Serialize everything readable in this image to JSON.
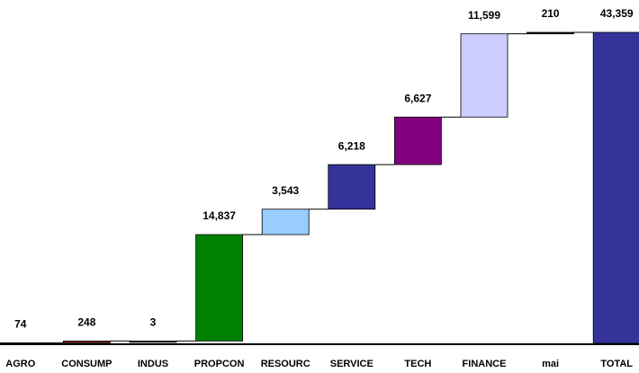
{
  "chart_data": {
    "type": "waterfall",
    "categories": [
      "AGRO",
      "CONSUMP",
      "INDUS",
      "PROPCON",
      "RESOURC",
      "SERVICE",
      "TECH",
      "FINANCE",
      "mai",
      "TOTAL"
    ],
    "values": [
      74,
      248,
      3,
      14837,
      3543,
      6218,
      6627,
      11599,
      210,
      43359
    ],
    "value_labels": [
      "74",
      "248",
      "3",
      "14,837",
      "3,543",
      "6,218",
      "6,627",
      "11,599",
      "210",
      "43,359"
    ],
    "colors": [
      "#333399",
      "#800000",
      "#333333",
      "#008000",
      "#99ccff",
      "#333399",
      "#800080",
      "#ccccff",
      "#000000",
      "#333399"
    ]
  }
}
